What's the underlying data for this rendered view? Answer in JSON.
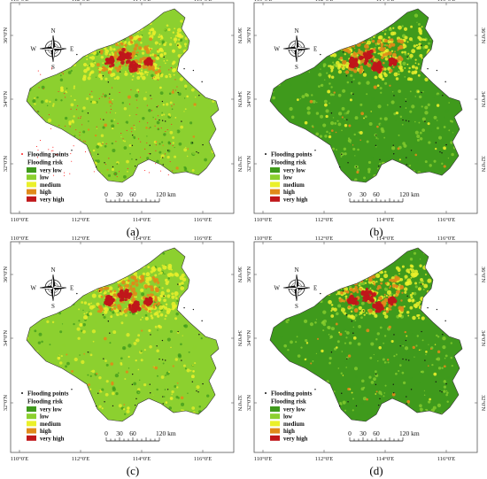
{
  "colors": {
    "very_low": "#3f9a1c",
    "low": "#8cd02f",
    "medium": "#eaf02a",
    "high": "#e08a1a",
    "very_high": "#c0161a",
    "frame": "#555555",
    "flood_point": "#ff2020"
  },
  "axes": {
    "lon_ticks": [
      "110°0'E",
      "112°0'E",
      "114°0'E",
      "116°0'E"
    ],
    "lat_ticks": [
      "36°0'N",
      "34°0'N",
      "32°0'N"
    ]
  },
  "compass": {
    "n": "N",
    "s": "S",
    "e": "E",
    "w": "W",
    "icon": "compass-rose-icon"
  },
  "legend": {
    "points_label": "Flooding points",
    "risk_title": "Flooding risk",
    "classes": [
      {
        "key": "very_low",
        "label": "very low"
      },
      {
        "key": "low",
        "label": "low"
      },
      {
        "key": "medium",
        "label": "medium"
      },
      {
        "key": "high",
        "label": "high"
      },
      {
        "key": "very_high",
        "label": "very high"
      }
    ]
  },
  "scalebar": {
    "labels": [
      "0",
      "30",
      "60",
      "120 km"
    ]
  },
  "panels": [
    {
      "id": "a",
      "caption": "(a)",
      "base": "low"
    },
    {
      "id": "b",
      "caption": "(b)",
      "base": "very_low"
    },
    {
      "id": "c",
      "caption": "(c)",
      "base": "low"
    },
    {
      "id": "d",
      "caption": "(d)",
      "base": "very_low"
    }
  ]
}
